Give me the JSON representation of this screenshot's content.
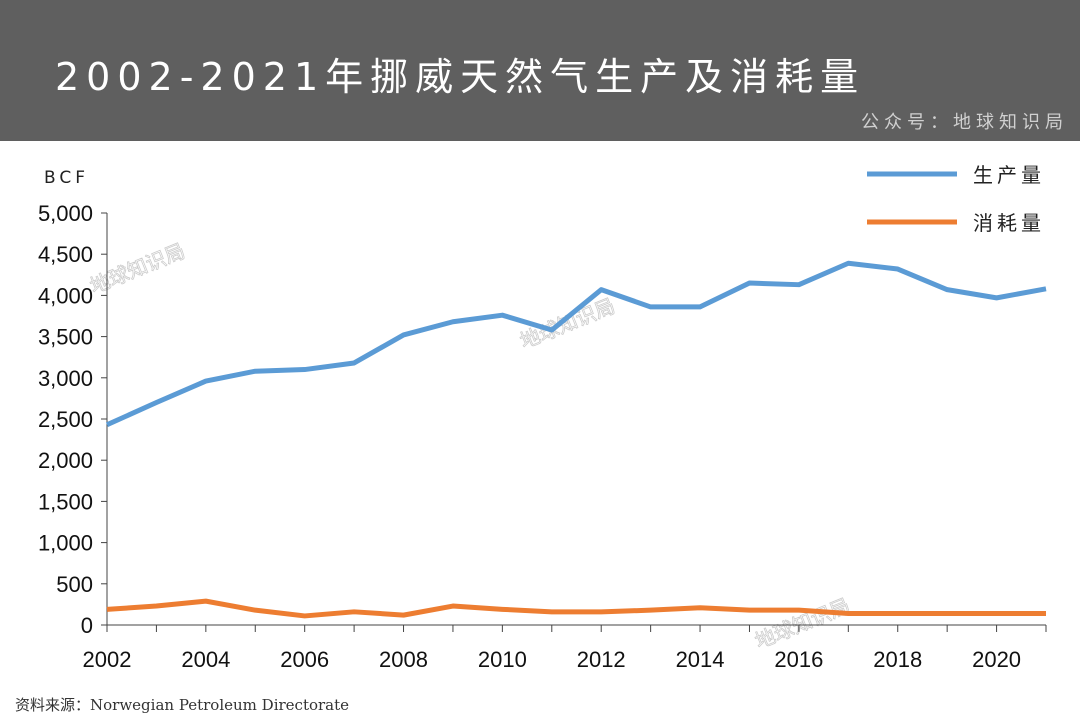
{
  "header": {
    "title": "2002-2021年挪威天然气生产及消耗量",
    "subtitle": "公众号：地球知识局"
  },
  "source": "资料来源：Norwegian Petroleum Directorate",
  "watermark": "地球知识局",
  "chart_data": {
    "type": "line",
    "title": "2002-2021年挪威天然气生产及消耗量",
    "ylabel": "BCF",
    "ylim": [
      0,
      5000
    ],
    "yticks": [
      0,
      500,
      1000,
      1500,
      2000,
      2500,
      3000,
      3500,
      4000,
      4500,
      5000
    ],
    "ytick_labels": [
      "0",
      "500",
      "1,000",
      "1,500",
      "2,000",
      "2,500",
      "3,000",
      "3,500",
      "4,000",
      "4,500",
      "5,000"
    ],
    "x": [
      2002,
      2003,
      2004,
      2005,
      2006,
      2007,
      2008,
      2009,
      2010,
      2011,
      2012,
      2013,
      2014,
      2015,
      2016,
      2017,
      2018,
      2019,
      2020,
      2021
    ],
    "xtick_labels": [
      "2002",
      "2004",
      "2006",
      "2008",
      "2010",
      "2012",
      "2014",
      "2016",
      "2018",
      "2020"
    ],
    "legend_position": "top-right",
    "grid": false,
    "series": [
      {
        "name": "生产量",
        "color": "#5b9bd5",
        "values": [
          2430,
          2700,
          2960,
          3080,
          3100,
          3180,
          3520,
          3680,
          3760,
          3580,
          4070,
          3860,
          3860,
          4150,
          4130,
          4390,
          4320,
          4070,
          3970,
          4080
        ]
      },
      {
        "name": "消耗量",
        "color": "#ed7d31",
        "values": [
          190,
          230,
          290,
          180,
          110,
          160,
          120,
          230,
          190,
          160,
          160,
          180,
          210,
          180,
          180,
          140,
          140,
          140,
          140,
          140
        ]
      }
    ]
  }
}
